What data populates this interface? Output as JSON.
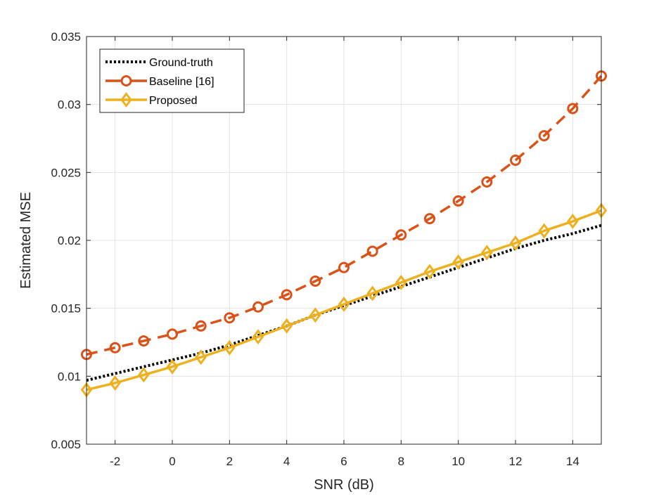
{
  "chart_data": {
    "type": "line",
    "title": "",
    "xlabel": "SNR (dB)",
    "ylabel": "Estimated MSE",
    "xlim": [
      -3,
      15
    ],
    "ylim": [
      0.005,
      0.035
    ],
    "grid": true,
    "legend_position": "top-left",
    "xticks": [
      -2,
      0,
      2,
      4,
      6,
      8,
      10,
      12,
      14
    ],
    "xtick_labels": [
      "-2",
      "0",
      "2",
      "4",
      "6",
      "8",
      "10",
      "12",
      "14"
    ],
    "yticks": [
      0.005,
      0.01,
      0.015,
      0.02,
      0.025,
      0.03,
      0.035
    ],
    "ytick_labels": [
      "0.005",
      "0.01",
      "0.015",
      "0.02",
      "0.025",
      "0.03",
      "0.035"
    ],
    "x": [
      -3,
      -2,
      -1,
      0,
      1,
      2,
      3,
      4,
      5,
      6,
      7,
      8,
      9,
      10,
      11,
      12,
      13,
      14,
      15
    ],
    "series": [
      {
        "name": "Ground-truth",
        "color": "#000000",
        "line_style": "dotted",
        "marker": "none",
        "values": [
          0.0097,
          0.0102,
          0.0107,
          0.0112,
          0.0117,
          0.0123,
          0.013,
          0.0137,
          0.0145,
          0.0152,
          0.0159,
          0.0166,
          0.0173,
          0.018,
          0.0187,
          0.0194,
          0.02,
          0.0205,
          0.0211
        ]
      },
      {
        "name": "Baseline [16]",
        "color": "#D95319",
        "line_style": "dashed",
        "marker": "circle",
        "values": [
          0.0116,
          0.0121,
          0.0126,
          0.0131,
          0.0137,
          0.0143,
          0.0151,
          0.016,
          0.017,
          0.018,
          0.0192,
          0.0204,
          0.0216,
          0.0229,
          0.0243,
          0.0259,
          0.0277,
          0.0297,
          0.0321
        ]
      },
      {
        "name": "Proposed",
        "color": "#EDB120",
        "line_style": "solid",
        "marker": "diamond",
        "values": [
          0.009,
          0.0095,
          0.0101,
          0.0107,
          0.0114,
          0.0121,
          0.0129,
          0.0137,
          0.0145,
          0.0153,
          0.0161,
          0.0169,
          0.0177,
          0.0184,
          0.0191,
          0.0198,
          0.0207,
          0.0214,
          0.0222
        ]
      }
    ]
  }
}
